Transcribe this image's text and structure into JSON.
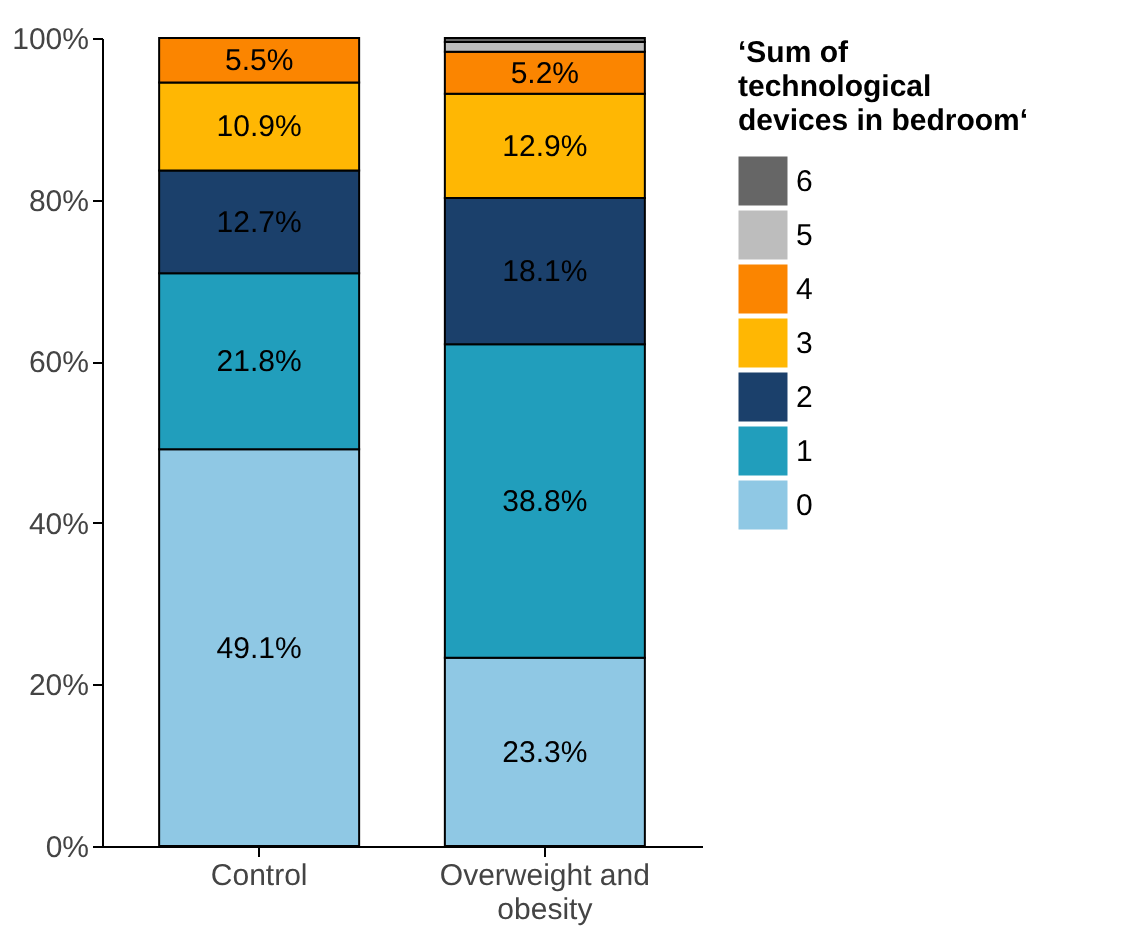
{
  "chart_data": {
    "type": "bar",
    "stacked": true,
    "categories": [
      "Control",
      "Overweight and obesity"
    ],
    "legend_title": "‘Sum of technological devices in bedroom‘",
    "legend": "right",
    "grid": false,
    "ylim": [
      0,
      100
    ],
    "yticks": [
      {
        "value": 0,
        "label": "0%"
      },
      {
        "value": 20,
        "label": "20%"
      },
      {
        "value": 40,
        "label": "40%"
      },
      {
        "value": 60,
        "label": "60%"
      },
      {
        "value": 80,
        "label": "80%"
      },
      {
        "value": 100,
        "label": "100%"
      }
    ],
    "series": [
      {
        "name": "0",
        "color": "#8fc8e4",
        "values": [
          49.1,
          23.3
        ],
        "value_labels": [
          "49.1%",
          "23.3%"
        ]
      },
      {
        "name": "1",
        "color": "#219ebc",
        "values": [
          21.8,
          38.8
        ],
        "value_labels": [
          "21.8%",
          "38.8%"
        ]
      },
      {
        "name": "2",
        "color": "#1b406b",
        "values": [
          12.7,
          18.1
        ],
        "value_labels": [
          "12.7%",
          "18.1%"
        ]
      },
      {
        "name": "3",
        "color": "#ffb703",
        "values": [
          10.9,
          12.9
        ],
        "value_labels": [
          "10.9%",
          "12.9%"
        ]
      },
      {
        "name": "4",
        "color": "#fb8500",
        "values": [
          5.5,
          5.2
        ],
        "value_labels": [
          "5.5%",
          "5.2%"
        ]
      },
      {
        "name": "5",
        "color": "#bdbdbd",
        "values": [
          0,
          1.2
        ],
        "value_labels": [
          null,
          null
        ]
      },
      {
        "name": "6",
        "color": "#666666",
        "values": [
          0,
          0.5
        ],
        "value_labels": [
          null,
          null
        ]
      }
    ]
  }
}
